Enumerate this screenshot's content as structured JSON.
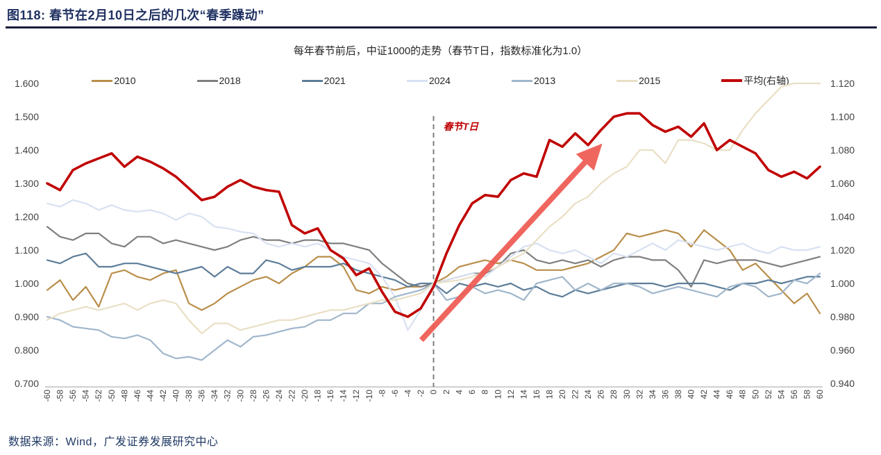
{
  "figure": {
    "number_title": "图118:  春节在2月10日之后的几次“春季躁动”",
    "source": "数据来源：Wind，广发证券发展研究中心"
  },
  "chart_data": {
    "type": "line",
    "title": "每年春节前后，中证1000的走势（春节T日，指数标准化为1.0）",
    "xlabel": "",
    "ylabel": "",
    "x": [
      -60,
      -58,
      -56,
      -54,
      -52,
      -50,
      -48,
      -46,
      -44,
      -42,
      -40,
      -38,
      -36,
      -34,
      -32,
      -30,
      -28,
      -26,
      -24,
      -22,
      -20,
      -18,
      -16,
      -14,
      -12,
      -10,
      -8,
      -6,
      -4,
      -2,
      0,
      2,
      4,
      6,
      8,
      10,
      12,
      14,
      16,
      18,
      20,
      22,
      24,
      26,
      28,
      30,
      32,
      34,
      36,
      38,
      40,
      42,
      44,
      46,
      48,
      50,
      52,
      54,
      56,
      58,
      60
    ],
    "left_axis": {
      "min": 0.7,
      "max": 1.6,
      "tick_step": 0.1,
      "tick_labels": [
        "1.600",
        "1.500",
        "1.400",
        "1.300",
        "1.200",
        "1.100",
        "1.000",
        "0.900",
        "0.800",
        "0.700"
      ]
    },
    "right_axis": {
      "min": 0.94,
      "max": 1.12,
      "tick_step": 0.02,
      "tick_labels": [
        "1.120",
        "1.100",
        "1.080",
        "1.060",
        "1.040",
        "1.020",
        "1.000",
        "0.980",
        "0.960",
        "0.940"
      ]
    },
    "grid": false,
    "legend_position": "top",
    "annotation": {
      "text": "春节T日",
      "color": "#c00000"
    },
    "t_line_day": 0,
    "arrow": {
      "from_day": -1.9,
      "from_value_left": 0.83,
      "to_day": 24.8,
      "to_value_left": 1.39,
      "color": "#ee5a52"
    },
    "series": [
      {
        "name": "2010",
        "axis": "left",
        "color": "#b98e4a",
        "width": 2.2,
        "values": [
          0.98,
          1.01,
          0.95,
          0.99,
          0.93,
          1.03,
          1.04,
          1.02,
          1.01,
          1.03,
          1.04,
          0.94,
          0.92,
          0.94,
          0.97,
          0.99,
          1.01,
          1.02,
          1.0,
          1.03,
          1.05,
          1.08,
          1.08,
          1.05,
          0.98,
          0.97,
          0.99,
          0.98,
          0.99,
          0.99,
          1.0,
          1.02,
          1.05,
          1.06,
          1.07,
          1.06,
          1.07,
          1.06,
          1.04,
          1.04,
          1.04,
          1.05,
          1.06,
          1.08,
          1.1,
          1.15,
          1.14,
          1.15,
          1.16,
          1.15,
          1.11,
          1.16,
          1.13,
          1.1,
          1.04,
          1.06,
          1.02,
          0.98,
          0.94,
          0.97,
          0.91
        ]
      },
      {
        "name": "2018",
        "axis": "left",
        "color": "#7f7f7f",
        "width": 2.2,
        "values": [
          1.17,
          1.14,
          1.13,
          1.15,
          1.15,
          1.12,
          1.11,
          1.14,
          1.14,
          1.12,
          1.13,
          1.12,
          1.11,
          1.1,
          1.11,
          1.13,
          1.14,
          1.13,
          1.13,
          1.12,
          1.13,
          1.13,
          1.12,
          1.12,
          1.11,
          1.1,
          1.06,
          1.03,
          1.0,
          0.99,
          1.0,
          1.01,
          1.02,
          1.03,
          1.03,
          1.05,
          1.09,
          1.1,
          1.07,
          1.06,
          1.07,
          1.06,
          1.07,
          1.05,
          1.07,
          1.08,
          1.08,
          1.07,
          1.07,
          1.04,
          0.99,
          1.07,
          1.06,
          1.07,
          1.07,
          1.07,
          1.06,
          1.05,
          1.06,
          1.07,
          1.08
        ]
      },
      {
        "name": "2021",
        "axis": "left",
        "color": "#5d7d99",
        "width": 2.2,
        "values": [
          1.07,
          1.06,
          1.08,
          1.09,
          1.05,
          1.05,
          1.06,
          1.06,
          1.05,
          1.04,
          1.03,
          1.04,
          1.05,
          1.02,
          1.05,
          1.03,
          1.03,
          1.07,
          1.06,
          1.04,
          1.05,
          1.05,
          1.05,
          1.06,
          1.04,
          1.03,
          1.02,
          1.01,
          0.99,
          1.0,
          1.0,
          0.97,
          1.0,
          0.99,
          1.0,
          0.99,
          1.0,
          0.98,
          0.99,
          0.97,
          0.96,
          0.98,
          0.97,
          0.98,
          0.99,
          1.0,
          1.0,
          1.0,
          0.99,
          1.0,
          1.0,
          1.0,
          0.99,
          0.98,
          1.0,
          1.0,
          1.01,
          1.0,
          1.01,
          1.02,
          1.02
        ]
      },
      {
        "name": "2024",
        "axis": "left",
        "color": "#d8e1f2",
        "width": 2.2,
        "values": [
          1.24,
          1.23,
          1.25,
          1.24,
          1.22,
          1.235,
          1.22,
          1.215,
          1.22,
          1.21,
          1.19,
          1.21,
          1.2,
          1.17,
          1.165,
          1.155,
          1.15,
          1.12,
          1.11,
          1.12,
          1.11,
          1.12,
          1.1,
          1.08,
          1.07,
          1.06,
          1.02,
          0.96,
          0.86,
          0.92,
          1.0,
          1.01,
          1.02,
          1.03,
          1.02,
          1.05,
          1.08,
          1.11,
          1.12,
          1.1,
          1.09,
          1.1,
          1.08,
          1.06,
          1.09,
          1.08,
          1.1,
          1.12,
          1.1,
          1.13,
          1.12,
          1.11,
          1.1,
          1.11,
          1.12,
          1.1,
          1.09,
          1.11,
          1.1,
          1.1,
          1.11
        ]
      },
      {
        "name": "2013",
        "axis": "left",
        "color": "#a0b6cb",
        "width": 2.2,
        "values": [
          0.9,
          0.89,
          0.87,
          0.865,
          0.86,
          0.84,
          0.835,
          0.845,
          0.83,
          0.79,
          0.775,
          0.78,
          0.77,
          0.8,
          0.83,
          0.81,
          0.84,
          0.845,
          0.855,
          0.865,
          0.87,
          0.89,
          0.89,
          0.91,
          0.91,
          0.94,
          0.94,
          0.96,
          0.97,
          0.98,
          1.0,
          0.95,
          0.96,
          0.99,
          0.97,
          0.98,
          0.97,
          0.95,
          1.0,
          1.01,
          1.02,
          0.98,
          1.0,
          0.98,
          1.0,
          1.0,
          0.99,
          0.97,
          0.98,
          0.99,
          0.98,
          0.97,
          0.96,
          0.99,
          1.0,
          0.99,
          0.96,
          0.97,
          1.01,
          1.0,
          1.03
        ]
      },
      {
        "name": "2015",
        "axis": "left",
        "color": "#e9dfc4",
        "width": 2.2,
        "values": [
          0.89,
          0.91,
          0.92,
          0.93,
          0.92,
          0.93,
          0.94,
          0.92,
          0.94,
          0.95,
          0.94,
          0.89,
          0.85,
          0.88,
          0.88,
          0.86,
          0.87,
          0.88,
          0.89,
          0.89,
          0.9,
          0.91,
          0.92,
          0.92,
          0.93,
          0.94,
          0.95,
          0.95,
          0.96,
          0.97,
          1.0,
          1.005,
          1.01,
          1.02,
          1.035,
          1.05,
          1.07,
          1.09,
          1.13,
          1.17,
          1.2,
          1.24,
          1.26,
          1.3,
          1.33,
          1.35,
          1.4,
          1.4,
          1.36,
          1.43,
          1.43,
          1.42,
          1.4,
          1.4,
          1.46,
          1.51,
          1.55,
          1.59,
          1.6,
          1.6,
          1.6
        ]
      },
      {
        "name": "平均(右轴)",
        "axis": "right",
        "color": "#c00000",
        "width": 3.6,
        "values": [
          1.06,
          1.056,
          1.068,
          1.072,
          1.075,
          1.078,
          1.07,
          1.076,
          1.073,
          1.069,
          1.064,
          1.057,
          1.05,
          1.052,
          1.058,
          1.062,
          1.058,
          1.056,
          1.055,
          1.035,
          1.03,
          1.033,
          1.02,
          1.015,
          1.005,
          1.009,
          0.995,
          0.983,
          0.98,
          0.985,
          0.998,
          1.018,
          1.035,
          1.048,
          1.053,
          1.052,
          1.062,
          1.066,
          1.064,
          1.086,
          1.082,
          1.09,
          1.083,
          1.092,
          1.1,
          1.102,
          1.102,
          1.095,
          1.091,
          1.094,
          1.088,
          1.096,
          1.08,
          1.086,
          1.082,
          1.078,
          1.068,
          1.064,
          1.067,
          1.063,
          1.07
        ]
      }
    ]
  }
}
